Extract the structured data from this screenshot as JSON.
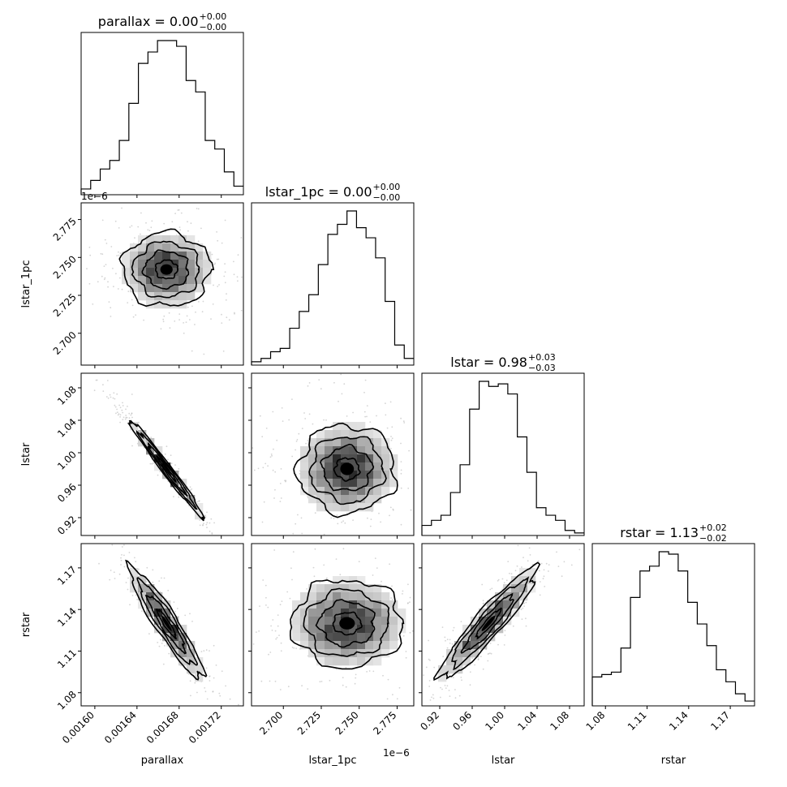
{
  "chart_data": {
    "type": "corner",
    "parameters": [
      "parallax",
      "lstar_1pc",
      "lstar",
      "rstar"
    ],
    "titles": [
      {
        "main": "parallax = 0.00",
        "sup": "+0.00",
        "sub": "−0.00"
      },
      {
        "main": "lstar_1pc = 0.00",
        "sup": "+0.00",
        "sub": "−0.00"
      },
      {
        "main": "lstar = 0.98",
        "sup": "+0.03",
        "sub": "−0.03"
      },
      {
        "main": "rstar = 1.13",
        "sup": "+0.02",
        "sub": "−0.02"
      }
    ],
    "xlabels": [
      "parallax",
      "lstar_1pc",
      "lstar",
      "rstar"
    ],
    "ylabels": [
      "",
      "lstar_1pc",
      "lstar",
      "rstar"
    ],
    "ranges": [
      [
        0.001587,
        0.001741
      ],
      [
        2.679e-06,
        2.786e-06
      ],
      [
        0.898,
        1.098
      ],
      [
        1.0705,
        1.1875
      ]
    ],
    "ticks": [
      {
        "values": [
          0.0016,
          0.00164,
          0.00168,
          0.00172
        ],
        "labels": [
          "0.00160",
          "0.00164",
          "0.00168",
          "0.00172"
        ]
      },
      {
        "values": [
          2.7e-06,
          2.725e-06,
          2.75e-06,
          2.775e-06
        ],
        "labels": [
          "2.700",
          "2.725",
          "2.750",
          "2.775"
        ]
      },
      {
        "values": [
          0.92,
          0.96,
          1.0,
          1.04,
          1.08
        ],
        "labels": [
          "0.92",
          "0.96",
          "1.00",
          "1.04",
          "1.08"
        ]
      },
      {
        "values": [
          1.08,
          1.11,
          1.14,
          1.17
        ],
        "labels": [
          "1.08",
          "1.11",
          "1.14",
          "1.17"
        ]
      }
    ],
    "offset_labels": {
      "lstar_1pc_x": "1e−6",
      "lstar_1pc_y": "1e−6"
    },
    "histograms": [
      [
        2,
        5,
        9,
        12,
        19,
        32,
        46,
        50,
        54,
        54,
        52,
        40,
        36,
        19,
        16,
        8,
        3
      ],
      [
        1,
        2,
        4,
        5,
        11,
        16,
        21,
        30,
        39,
        42,
        46,
        41,
        38,
        32,
        19,
        6,
        2
      ],
      [
        4,
        6,
        8,
        17,
        28,
        50,
        61,
        59,
        60,
        56,
        39,
        25,
        11,
        8,
        6,
        2,
        1
      ],
      [
        12,
        13,
        14,
        24,
        45,
        56,
        58,
        64,
        63,
        56,
        43,
        34,
        25,
        15,
        10,
        5,
        2
      ]
    ],
    "pairs": [
      {
        "x": 0,
        "y": 1,
        "mean": [
          0.001668,
          2.742e-06
        ],
        "sd": [
          1.75e-05,
          1.45e-08
        ],
        "corr": 0.0
      },
      {
        "x": 0,
        "y": 2,
        "mean": [
          0.001668,
          0.98
        ],
        "sd": [
          1.75e-05,
          0.03
        ],
        "corr": -0.985
      },
      {
        "x": 0,
        "y": 3,
        "mean": [
          0.001668,
          1.13
        ],
        "sd": [
          1.75e-05,
          0.02
        ],
        "corr": -0.93
      },
      {
        "x": 1,
        "y": 2,
        "mean": [
          2.742e-06,
          0.98
        ],
        "sd": [
          1.45e-08,
          0.03
        ],
        "corr": 0.0
      },
      {
        "x": 1,
        "y": 3,
        "mean": [
          2.742e-06,
          1.13
        ],
        "sd": [
          1.45e-08,
          0.02
        ],
        "corr": 0.0
      },
      {
        "x": 2,
        "y": 3,
        "mean": [
          0.98,
          1.13
        ],
        "sd": [
          0.03,
          0.02
        ],
        "corr": 0.93
      }
    ],
    "contour_levels_sigma": [
      0.5,
      1.0,
      1.5,
      2.0
    ],
    "grid": false,
    "legend": "none"
  }
}
